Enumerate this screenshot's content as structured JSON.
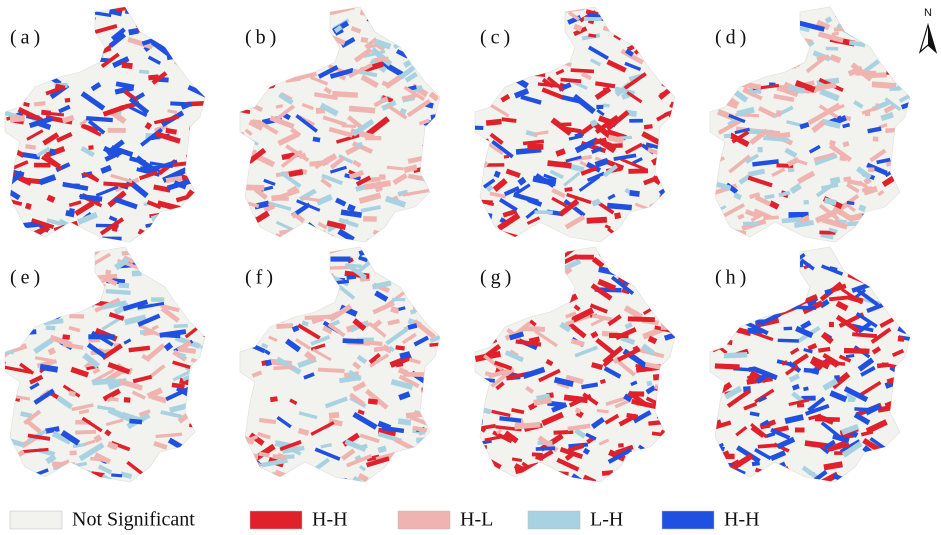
{
  "panels": [
    {
      "label": "(a)"
    },
    {
      "label": "(b)"
    },
    {
      "label": "(c)"
    },
    {
      "label": "(d)"
    },
    {
      "label": "(e)"
    },
    {
      "label": "(f)"
    },
    {
      "label": "(g)"
    },
    {
      "label": "(h)"
    }
  ],
  "north": "N",
  "legend": [
    {
      "label": "Not Significant",
      "color": "#f2f2ee"
    },
    {
      "label": "H-H",
      "color": "#e0202a"
    },
    {
      "label": "H-L",
      "color": "#f0b4b0"
    },
    {
      "label": "L-H",
      "color": "#a8d2e2"
    },
    {
      "label": "H-H",
      "color": "#2050e0"
    }
  ]
}
